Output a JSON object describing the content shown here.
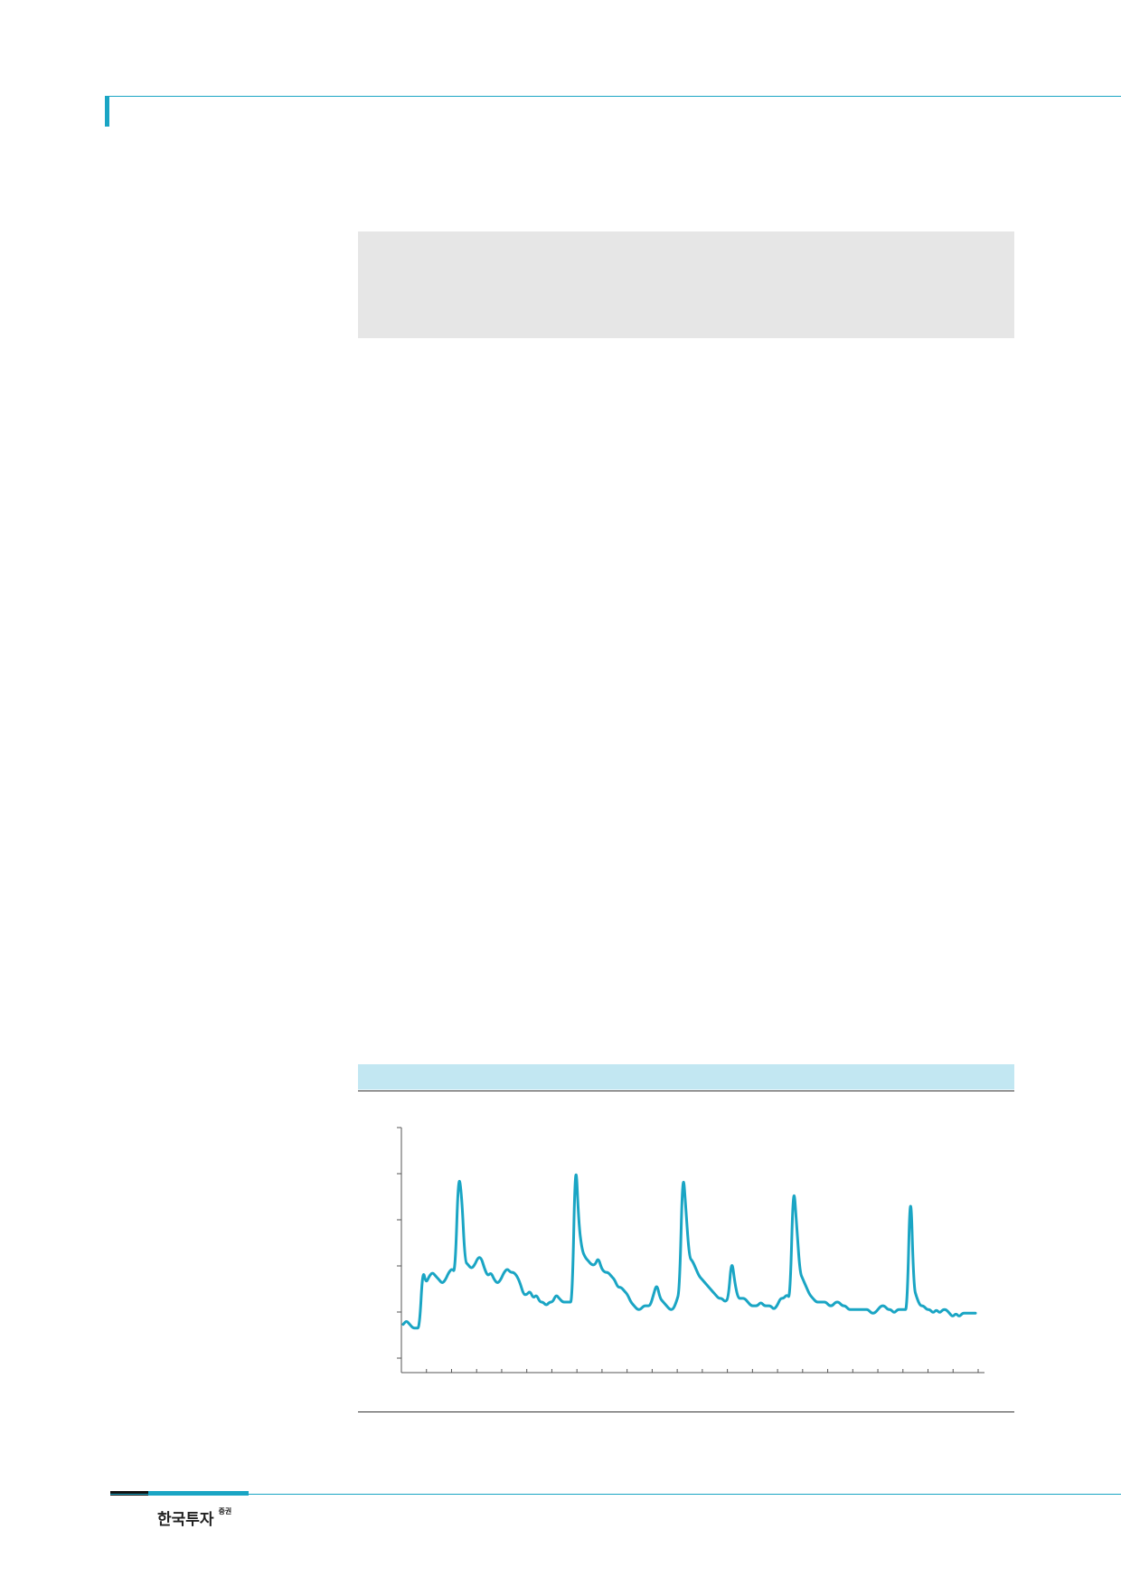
{
  "brand": {
    "name": "한국투자",
    "suffix": "증권"
  },
  "chart_data": {
    "type": "line",
    "series": [
      {
        "values": [
          2.3,
          2.4,
          2.3,
          2.2,
          2.2,
          2.2,
          3.8,
          3.4,
          3.6,
          3.7,
          3.6,
          3.5,
          3.4,
          3.5,
          3.7,
          3.8,
          3.7,
          6.4,
          5.8,
          4.0,
          3.9,
          3.8,
          3.9,
          4.1,
          4.1,
          3.8,
          3.6,
          3.7,
          3.5,
          3.4,
          3.5,
          3.7,
          3.8,
          3.7,
          3.7,
          3.6,
          3.4,
          3.1,
          3.1,
          3.2,
          3.0,
          3.1,
          2.9,
          2.9,
          2.8,
          2.9,
          2.9,
          3.1,
          3.0,
          2.9,
          2.9,
          2.9,
          2.9,
          7.0,
          5.0,
          4.3,
          4.1,
          4.0,
          3.9,
          3.9,
          4.1,
          3.8,
          3.7,
          3.7,
          3.6,
          3.5,
          3.3,
          3.3,
          3.2,
          3.1,
          2.9,
          2.8,
          2.7,
          2.7,
          2.8,
          2.8,
          2.8,
          3.1,
          3.4,
          3.0,
          2.9,
          2.8,
          2.7,
          2.7,
          2.9,
          3.2,
          6.6,
          5.3,
          4.1,
          4.0,
          3.8,
          3.6,
          3.5,
          3.4,
          3.3,
          3.2,
          3.1,
          3.0,
          3.0,
          2.9,
          3.0,
          4.1,
          3.4,
          3.0,
          3.0,
          3.0,
          2.9,
          2.8,
          2.8,
          2.8,
          2.9,
          2.8,
          2.8,
          2.8,
          2.7,
          2.8,
          3.0,
          3.0,
          3.1,
          3.0,
          6.2,
          5.0,
          3.7,
          3.5,
          3.3,
          3.1,
          3.0,
          2.9,
          2.9,
          2.9,
          2.9,
          2.8,
          2.8,
          2.9,
          2.9,
          2.8,
          2.8,
          2.7,
          2.7,
          2.7,
          2.7,
          2.7,
          2.7,
          2.7,
          2.6,
          2.6,
          2.7,
          2.8,
          2.8,
          2.7,
          2.7,
          2.6,
          2.7,
          2.7,
          2.7,
          2.7,
          6.3,
          3.3,
          3.0,
          2.8,
          2.8,
          2.7,
          2.7,
          2.6,
          2.7,
          2.6,
          2.7,
          2.7,
          2.6,
          2.5,
          2.6,
          2.5,
          2.6,
          2.6,
          2.6,
          2.6,
          2.6
        ]
      }
    ],
    "grid": false,
    "legend": "none"
  }
}
